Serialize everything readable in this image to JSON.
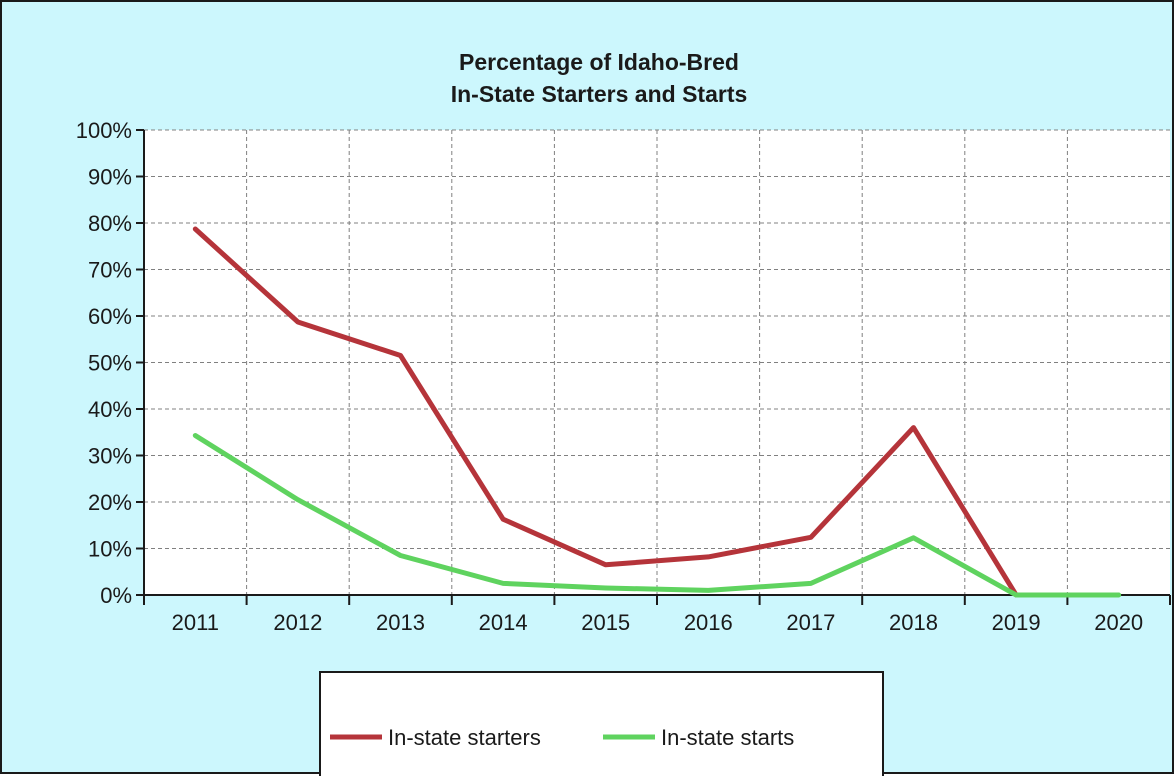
{
  "chart_data": {
    "type": "line",
    "title": [
      "Percentage of Idaho-Bred",
      "In-State Starters and Starts"
    ],
    "categories": [
      "2011",
      "2012",
      "2013",
      "2014",
      "2015",
      "2016",
      "2017",
      "2018",
      "2019",
      "2020"
    ],
    "series": [
      {
        "name": "In-state starters",
        "color": "#b5343a",
        "values": [
          0.787,
          0.587,
          0.515,
          0.163,
          0.065,
          0.082,
          0.124,
          0.36,
          0.0,
          null
        ]
      },
      {
        "name": "In-state starts",
        "color": "#5fd35f",
        "values": [
          0.343,
          0.205,
          0.085,
          0.025,
          0.015,
          0.01,
          0.025,
          0.123,
          0.0,
          0.0
        ]
      }
    ],
    "y_ticks": [
      "0%",
      "10%",
      "20%",
      "30%",
      "40%",
      "50%",
      "60%",
      "70%",
      "80%",
      "90%",
      "100%"
    ],
    "ylim": [
      0,
      1
    ],
    "grid": true,
    "legend_position": "bottom"
  },
  "colors": {
    "background": "#ccf7fd",
    "plot_background": "#ffffff",
    "grid": "#808080"
  }
}
